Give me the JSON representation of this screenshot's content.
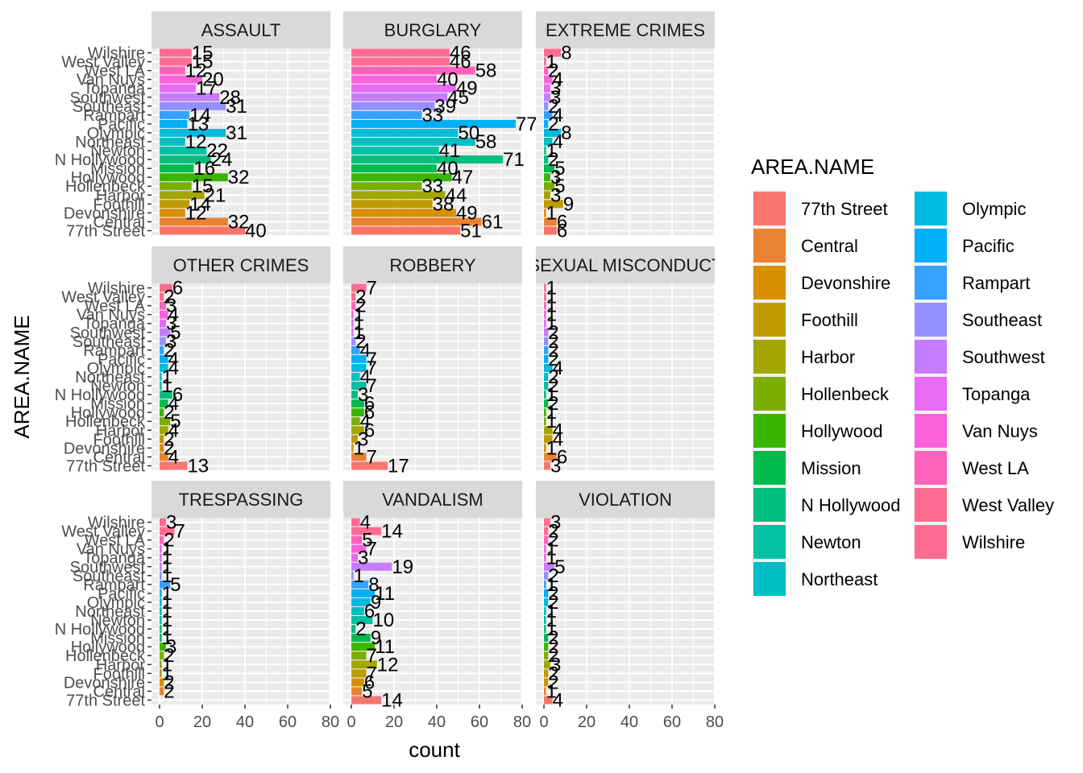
{
  "chart_data": {
    "type": "bar",
    "orientation": "horizontal",
    "facet_layout": "3x3 grid",
    "xlabel": "count",
    "ylabel": "AREA.NAME",
    "xlim": [
      0,
      80
    ],
    "x_ticks": [
      0,
      20,
      40,
      60,
      80
    ],
    "grid": true,
    "legend_title": "AREA.NAME",
    "legend_placement": "right",
    "categories": [
      "77th Street",
      "Central",
      "Devonshire",
      "Foothill",
      "Harbor",
      "Hollenbeck",
      "Hollywood",
      "Mission",
      "N Hollywood",
      "Newton",
      "Northeast",
      "Olympic",
      "Pacific",
      "Rampart",
      "Southeast",
      "Southwest",
      "Topanga",
      "Van Nuys",
      "West LA",
      "West Valley",
      "Wilshire"
    ],
    "colors": [
      "#F8766D",
      "#EA8331",
      "#D89000",
      "#C09B00",
      "#A3A500",
      "#7CAE00",
      "#39B600",
      "#00BB4E",
      "#00BF7D",
      "#00C1A3",
      "#00BFC4",
      "#00BAE0",
      "#00B0F6",
      "#35A2FF",
      "#9590FF",
      "#C77CFF",
      "#E76BF3",
      "#FA62DB",
      "#FF62BC",
      "#FF6C91",
      "#FF6C91"
    ],
    "facets": [
      {
        "title": "ASSAULT",
        "values": [
          40,
          32,
          12,
          14,
          21,
          15,
          32,
          16,
          24,
          22,
          12,
          31,
          13,
          14,
          31,
          28,
          17,
          20,
          12,
          15,
          15
        ]
      },
      {
        "title": "BURGLARY",
        "values": [
          51,
          61,
          49,
          38,
          44,
          33,
          47,
          40,
          71,
          41,
          58,
          50,
          77,
          33,
          39,
          45,
          49,
          40,
          58,
          46,
          46
        ]
      },
      {
        "title": "EXTREME CRIMES",
        "values": [
          6,
          6,
          1,
          9,
          3,
          5,
          3,
          5,
          2,
          1,
          4,
          8,
          2,
          4,
          2,
          3,
          3,
          4,
          2,
          1,
          8
        ]
      },
      {
        "title": "OTHER CRIMES",
        "values": [
          13,
          4,
          2,
          2,
          4,
          5,
          2,
          4,
          6,
          1,
          1,
          4,
          4,
          2,
          3,
          5,
          3,
          4,
          3,
          2,
          6
        ]
      },
      {
        "title": "ROBBERY",
        "values": [
          17,
          7,
          1,
          3,
          6,
          4,
          6,
          6,
          3,
          7,
          4,
          7,
          7,
          4,
          2,
          1,
          1,
          1,
          2,
          2,
          7
        ]
      },
      {
        "title": "SEXUAL MISCONDUCT",
        "values": [
          3,
          6,
          1,
          4,
          4,
          1,
          1,
          2,
          1,
          2,
          2,
          4,
          2,
          2,
          2,
          2,
          1,
          1,
          1,
          1,
          1
        ]
      },
      {
        "title": "TRESPASSING",
        "values": [
          0,
          2,
          2,
          1,
          1,
          2,
          3,
          1,
          1,
          1,
          1,
          1,
          1,
          5,
          1,
          1,
          1,
          1,
          2,
          7,
          3
        ]
      },
      {
        "title": "VANDALISM",
        "values": [
          14,
          5,
          6,
          7,
          12,
          7,
          11,
          9,
          2,
          10,
          6,
          9,
          11,
          8,
          1,
          19,
          3,
          7,
          5,
          14,
          4
        ]
      },
      {
        "title": "VIOLATION",
        "values": [
          4,
          1,
          2,
          2,
          3,
          2,
          2,
          2,
          1,
          1,
          1,
          2,
          2,
          1,
          2,
          5,
          1,
          1,
          2,
          2,
          3
        ]
      }
    ],
    "legend_entries": [
      "77th Street",
      "Central",
      "Devonshire",
      "Foothill",
      "Harbor",
      "Hollenbeck",
      "Hollywood",
      "Mission",
      "N Hollywood",
      "Newton",
      "Northeast",
      "Olympic",
      "Pacific",
      "Rampart",
      "Southeast",
      "Southwest",
      "Topanga",
      "Van Nuys",
      "West LA",
      "West Valley",
      "Wilshire"
    ]
  }
}
